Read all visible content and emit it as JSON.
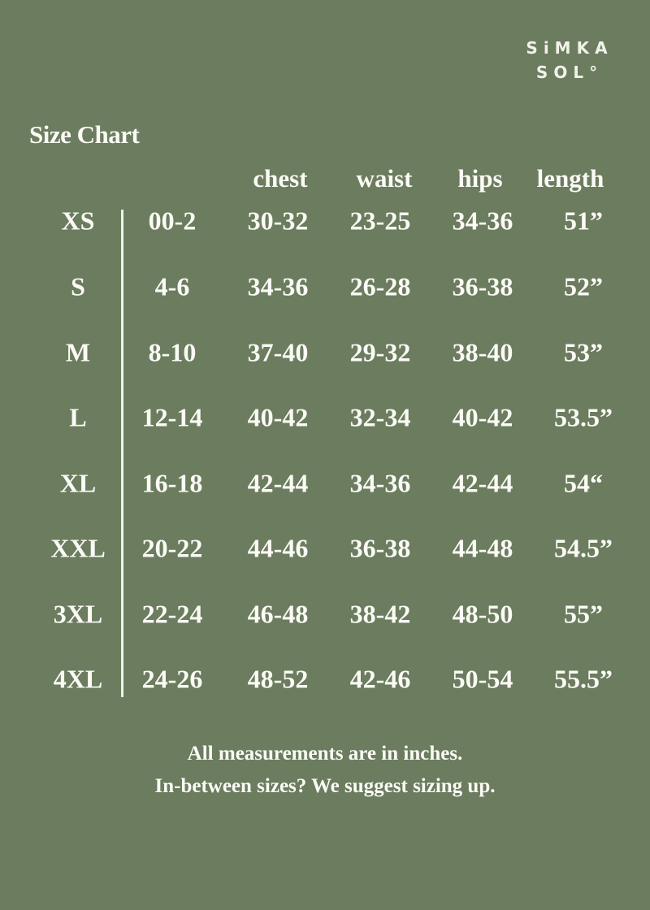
{
  "brand": {
    "line1": "SiMKA",
    "line2": "SOL°"
  },
  "title": "Size Chart",
  "headers": [
    "chest",
    "waist",
    "hips",
    "length"
  ],
  "rows": [
    {
      "size": "XS",
      "us": "00-2",
      "chest": "30-32",
      "waist": "23-25",
      "hips": "34-36",
      "length": "51”"
    },
    {
      "size": "S",
      "us": "4-6",
      "chest": "34-36",
      "waist": "26-28",
      "hips": "36-38",
      "length": "52”"
    },
    {
      "size": "M",
      "us": "8-10",
      "chest": "37-40",
      "waist": "29-32",
      "hips": "38-40",
      "length": "53”"
    },
    {
      "size": "L",
      "us": "12-14",
      "chest": "40-42",
      "waist": "32-34",
      "hips": "40-42",
      "length": "53.5”"
    },
    {
      "size": "XL",
      "us": "16-18",
      "chest": "42-44",
      "waist": "34-36",
      "hips": "42-44",
      "length": "54“"
    },
    {
      "size": "XXL",
      "us": "20-22",
      "chest": "44-46",
      "waist": "36-38",
      "hips": "44-48",
      "length": "54.5”"
    },
    {
      "size": "3XL",
      "us": "22-24",
      "chest": "46-48",
      "waist": "38-42",
      "hips": "48-50",
      "length": "55”"
    },
    {
      "size": "4XL",
      "us": "24-26",
      "chest": "48-52",
      "waist": "42-46",
      "hips": "50-54",
      "length": "55.5”"
    }
  ],
  "footer": {
    "line1": "All measurements are in inches.",
    "line2": "In-between sizes? We suggest sizing up."
  },
  "colors": {
    "background": "#6b7c5f",
    "text": "#fbfaf5"
  }
}
